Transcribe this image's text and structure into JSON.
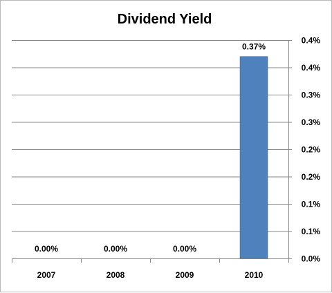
{
  "chart_data": {
    "type": "bar",
    "title": "Dividend Yield",
    "categories": [
      "2007",
      "2008",
      "2009",
      "2010"
    ],
    "values": [
      0.0,
      0.0,
      0.0,
      0.37
    ],
    "data_labels": [
      "0.00%",
      "0.00%",
      "0.00%",
      "0.37%"
    ],
    "y_tick_labels": [
      "0.0%",
      "0.1%",
      "0.1%",
      "0.2%",
      "0.2%",
      "0.3%",
      "0.3%",
      "0.4%",
      "0.4%"
    ],
    "y_tick_values": [
      0.0,
      0.05,
      0.1,
      0.15,
      0.2,
      0.25,
      0.3,
      0.35,
      0.4
    ],
    "ylim": [
      0,
      0.4
    ],
    "y_axis_side": "right",
    "grid": true,
    "bar_color": "#4f81bd",
    "xlabel": "",
    "ylabel": ""
  }
}
